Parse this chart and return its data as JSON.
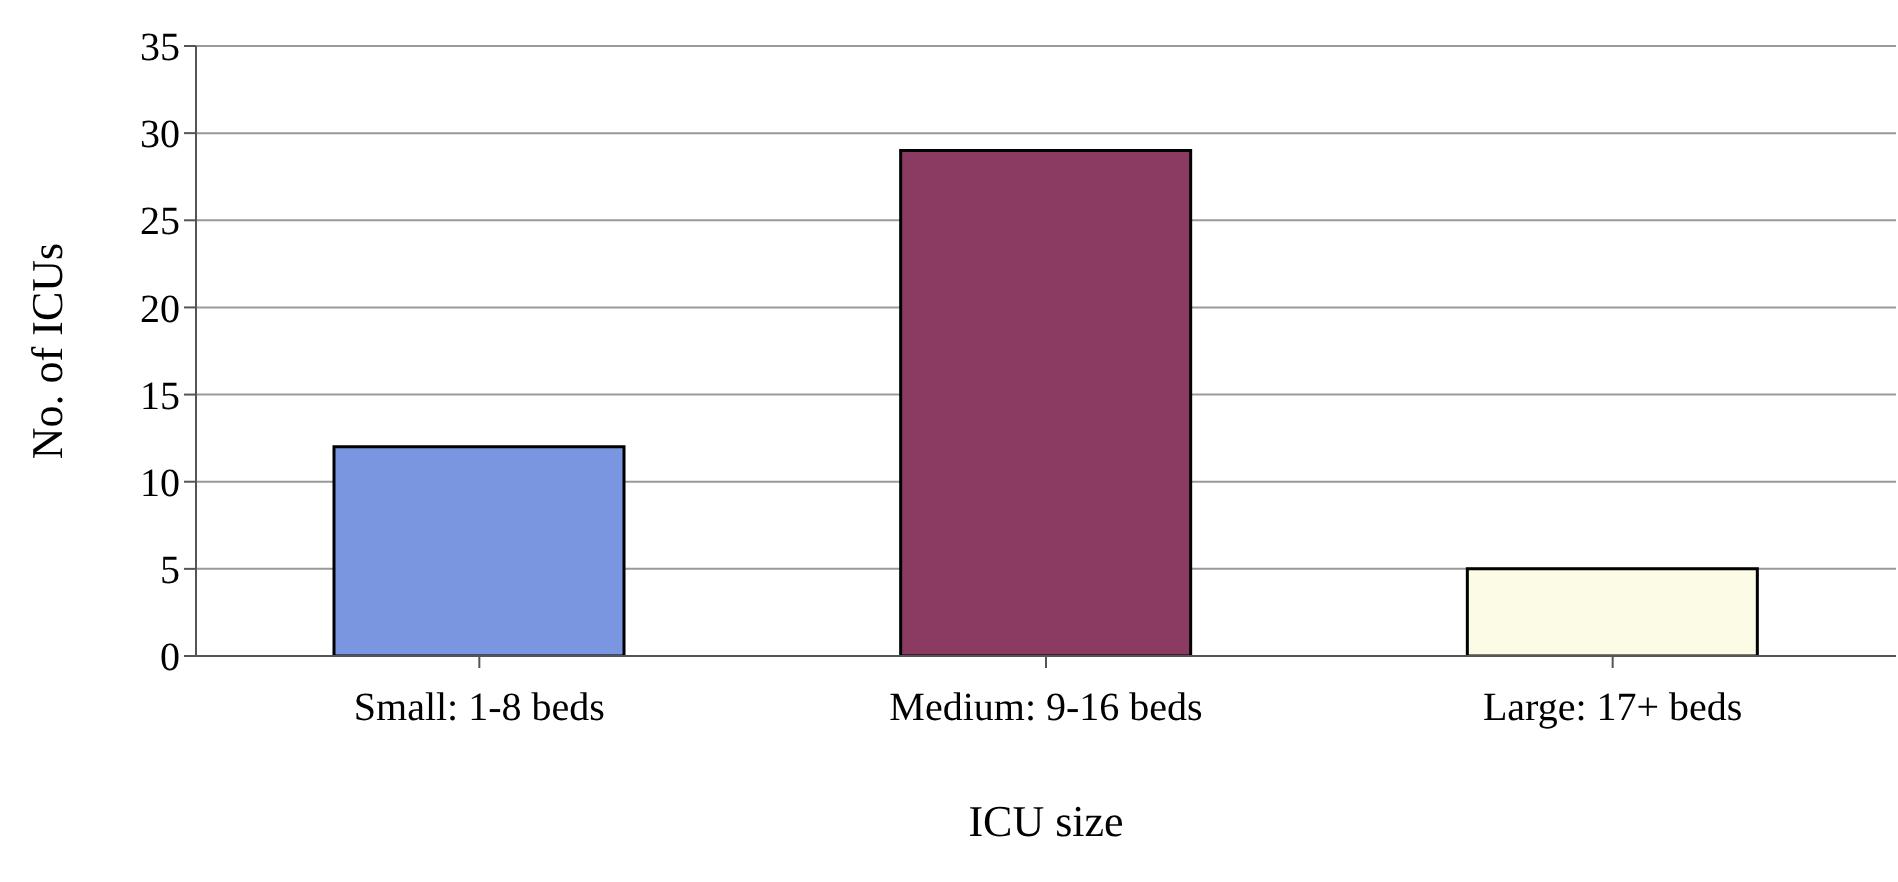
{
  "chart_data": {
    "type": "bar",
    "xlabel": "ICU size",
    "ylabel": "No. of ICUs",
    "categories": [
      "Small: 1-8 beds",
      "Medium: 9-16 beds",
      "Large: 17+ beds"
    ],
    "values": [
      12,
      29,
      5
    ],
    "colors": [
      "#7b96e0",
      "#8b3a62",
      "#fbfbe6"
    ],
    "ylim": [
      0,
      35
    ],
    "yticks": [
      0,
      5,
      10,
      15,
      20,
      25,
      30,
      35
    ],
    "grid": "y"
  }
}
